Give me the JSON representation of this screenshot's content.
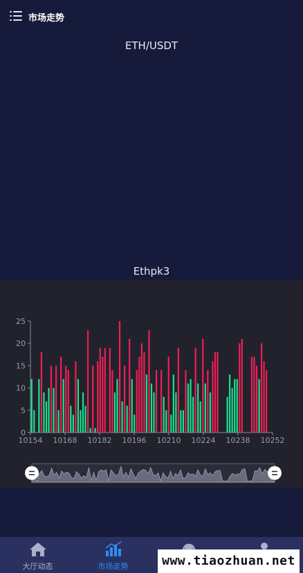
{
  "header": {
    "title": "市场走势",
    "menu_icon": "menu-list-icon"
  },
  "pair_title": "ETH/USDT",
  "section_title": "Ethpk3",
  "colors": {
    "background": "#161a3b",
    "panel": "#22222c",
    "up": "#19e38f",
    "down": "#ef1f55",
    "accent": "#2c8ef8"
  },
  "chart_data": {
    "type": "bar",
    "title": "Ethpk3",
    "ylim": [
      0,
      25
    ],
    "yticks": [
      0,
      5,
      10,
      15,
      20,
      25
    ],
    "xticks": [
      10154,
      10168,
      10182,
      10196,
      10210,
      10224,
      10238,
      10252
    ],
    "x_start": 10154,
    "x_end": 10252,
    "grid": false,
    "series": [
      {
        "color_key": "up",
        "values": [
          12,
          5,
          0,
          12,
          0,
          9,
          7,
          10,
          7,
          10,
          0,
          5,
          0,
          12,
          0,
          0,
          6,
          4,
          0,
          12,
          5,
          9,
          6,
          0,
          1,
          0,
          1,
          0,
          0,
          0,
          0,
          0,
          0,
          0,
          9,
          12,
          0,
          7,
          0,
          6,
          0,
          12,
          4,
          0,
          0,
          0,
          0,
          13,
          0,
          11,
          9,
          0,
          0,
          0,
          8,
          5,
          0,
          4,
          13,
          9,
          0,
          5,
          5,
          0,
          11,
          12,
          8,
          0,
          11,
          7,
          0,
          11,
          0,
          9,
          0,
          0,
          0,
          0,
          0,
          0,
          8,
          13,
          10,
          12,
          12,
          0,
          0,
          0,
          0,
          0,
          0,
          0,
          8,
          12,
          0,
          0,
          0,
          0,
          0
        ]
      },
      {
        "color_key": "down",
        "values": [
          0,
          0,
          0,
          0,
          18,
          0,
          0,
          0,
          15,
          0,
          15,
          0,
          17,
          0,
          15,
          14,
          0,
          0,
          16,
          0,
          0,
          0,
          0,
          23,
          0,
          15,
          0,
          16,
          19,
          17,
          19,
          0,
          19,
          14,
          0,
          0,
          25,
          0,
          15,
          0,
          21,
          0,
          0,
          14,
          17,
          20,
          18,
          0,
          23,
          0,
          0,
          14,
          0,
          14,
          0,
          0,
          17,
          0,
          0,
          0,
          19,
          0,
          0,
          14,
          0,
          0,
          0,
          19,
          0,
          0,
          21,
          0,
          14,
          0,
          16,
          18,
          18,
          0,
          0,
          0,
          0,
          0,
          0,
          0,
          0,
          20,
          21,
          0,
          0,
          0,
          17,
          17,
          15,
          0,
          20,
          16,
          14,
          0,
          0
        ]
      }
    ]
  },
  "tabs": [
    {
      "label": "大厅动态",
      "icon": "home-icon"
    },
    {
      "label": "市场走势",
      "icon": "bar-chart-icon"
    },
    {
      "label": "",
      "icon": "support-headset-icon"
    },
    {
      "label": "",
      "icon": "user-icon"
    }
  ],
  "watermark": "www.tiaozhuan.net"
}
